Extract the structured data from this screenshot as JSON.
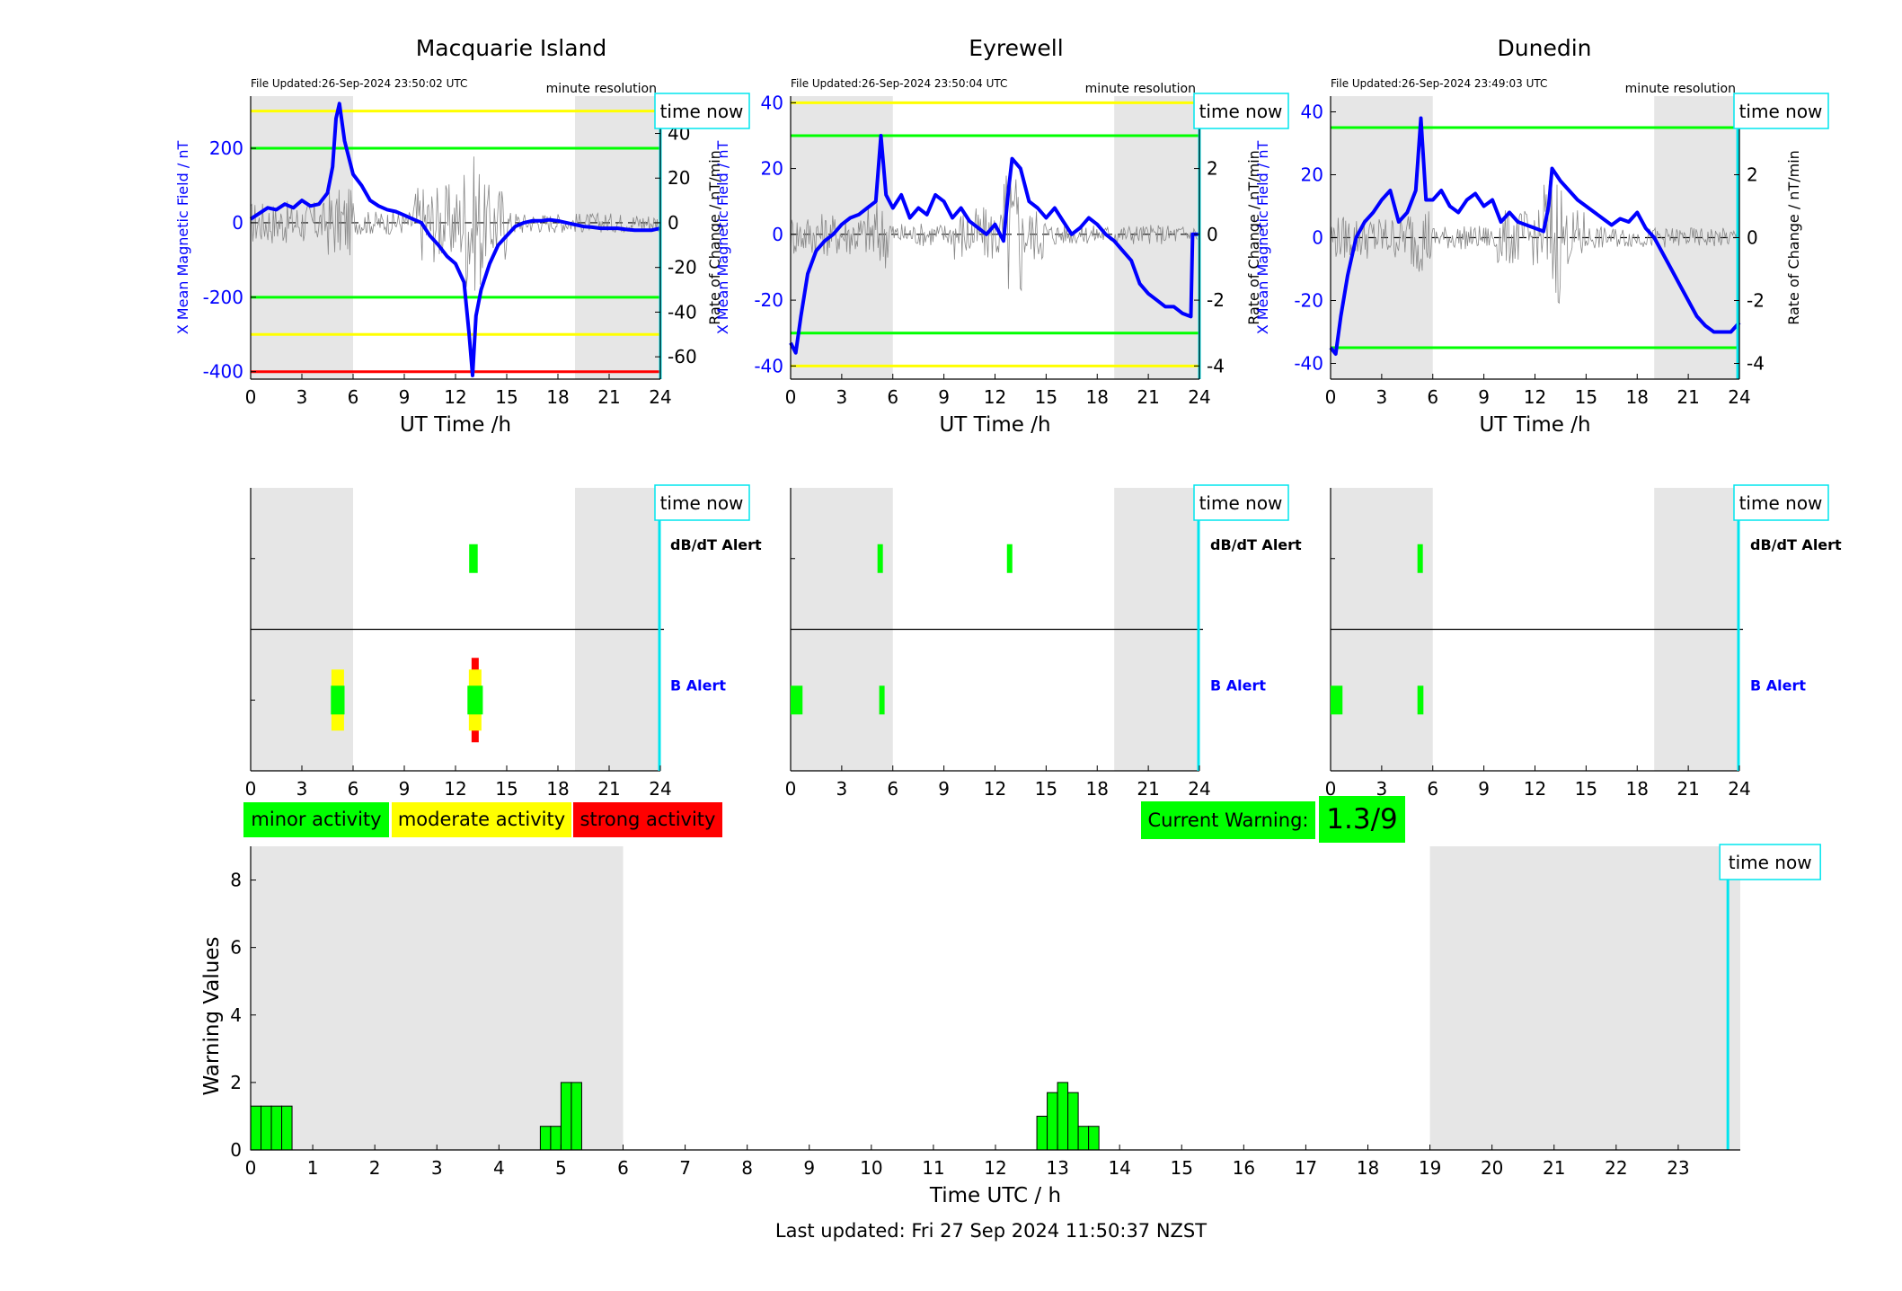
{
  "footer": {
    "last_updated": "Last updated: Fri 27 Sep 2024 11:50:37 NZST"
  },
  "colors": {
    "minor": "#00ff00",
    "moderate": "#ffff00",
    "strong": "#ff0000",
    "series_x": "#0000ff",
    "time_now": "#00e5ee",
    "night_shade": "#e6e6e6"
  },
  "stations": [
    {
      "name": "Macquarie Island",
      "file_updated": "File Updated:26-Sep-2024 23:50:02 UTC",
      "resolution": "minute resolution",
      "time_now_label": "time now",
      "xlabel": "UT Time /h",
      "ylabel_left": "X Mean Magnetic Field / nT",
      "ylabel_right": "Rate of Change / nT/min",
      "left_ticks": [
        "-400",
        "-200",
        "0",
        "200"
      ],
      "right_ticks": [
        "-60",
        "-40",
        "-20",
        "0",
        "20",
        "40"
      ],
      "x_ticks": [
        "0",
        "3",
        "6",
        "9",
        "12",
        "15",
        "18",
        "21",
        "24"
      ],
      "alert_dbdt_label": "dB/dT Alert",
      "alert_b_label": "B Alert"
    },
    {
      "name": "Eyrewell",
      "file_updated": "File Updated:26-Sep-2024 23:50:04 UTC",
      "resolution": "minute resolution",
      "time_now_label": "time now",
      "xlabel": "UT Time /h",
      "ylabel_left": "X Mean Magnetic Field / nT",
      "ylabel_right": "Rate of Change / nT/min",
      "left_ticks": [
        "-40",
        "-20",
        "0",
        "20",
        "40"
      ],
      "right_ticks": [
        "-4",
        "-2",
        "0",
        "2",
        "4"
      ],
      "x_ticks": [
        "0",
        "3",
        "6",
        "9",
        "12",
        "15",
        "18",
        "21",
        "24"
      ],
      "alert_dbdt_label": "dB/dT Alert",
      "alert_b_label": "B Alert"
    },
    {
      "name": "Dunedin",
      "file_updated": "File Updated:26-Sep-2024 23:49:03 UTC",
      "resolution": "minute resolution",
      "time_now_label": "time now",
      "xlabel": "UT Time /h",
      "ylabel_left": "X Mean Magnetic Field / nT",
      "ylabel_right": "Rate of Change / nT/min",
      "left_ticks": [
        "-40",
        "-20",
        "0",
        "20",
        "40"
      ],
      "right_ticks": [
        "-4",
        "-2",
        "0",
        "2",
        "4"
      ],
      "x_ticks": [
        "0",
        "3",
        "6",
        "9",
        "12",
        "15",
        "18",
        "21",
        "24"
      ],
      "alert_dbdt_label": "dB/dT Alert",
      "alert_b_label": "B Alert"
    }
  ],
  "legend": {
    "minor": "minor activity",
    "moderate": "moderate activity",
    "strong": "strong activity"
  },
  "current_warning": {
    "label": "Current Warning:",
    "value": "1.3/9"
  },
  "warning_chart": {
    "ylabel": "Warning Values",
    "xlabel": "Time UTC / h",
    "time_now_label": "time now",
    "y_ticks": [
      "0",
      "2",
      "4",
      "6",
      "8"
    ],
    "x_ticks": [
      "0",
      "1",
      "2",
      "3",
      "4",
      "5",
      "6",
      "7",
      "8",
      "9",
      "10",
      "11",
      "12",
      "13",
      "14",
      "15",
      "16",
      "17",
      "18",
      "19",
      "20",
      "21",
      "22",
      "23"
    ]
  },
  "chart_data": [
    {
      "type": "line",
      "title": "Macquarie Island",
      "xlabel": "UT Time /h",
      "ylabel": "X Mean Magnetic Field / nT",
      "y2label": "Rate of Change / nT/min",
      "xlim": [
        0,
        24
      ],
      "ylim": [
        -420,
        340
      ],
      "y2lim": [
        -70,
        56.7
      ],
      "threshold_lines": [
        {
          "y": 300,
          "color": "#ffff00"
        },
        {
          "y": 200,
          "color": "#00ff00"
        },
        {
          "y": -200,
          "color": "#00ff00"
        },
        {
          "y": -300,
          "color": "#ffff00"
        },
        {
          "y": -400,
          "color": "#ff0000"
        }
      ],
      "night_shading": [
        [
          0,
          6
        ],
        [
          19,
          24
        ]
      ],
      "time_now": 24,
      "series": [
        {
          "x": [
            0,
            0.5,
            1,
            1.5,
            2,
            2.5,
            3,
            3.5,
            4,
            4.5,
            4.8,
            5,
            5.2,
            5.5,
            6,
            6.5,
            7,
            7.5,
            8,
            8.5,
            9,
            9.5,
            10,
            10.5,
            11,
            11.5,
            12,
            12.5,
            12.8,
            13,
            13.2,
            13.5,
            14,
            14.5,
            15,
            15.5,
            16,
            16.5,
            17,
            17.5,
            18,
            18.5,
            19,
            19.5,
            20,
            20.5,
            21,
            21.5,
            22,
            22.5,
            23,
            23.5,
            24
          ],
          "y": [
            10,
            25,
            40,
            35,
            50,
            40,
            60,
            45,
            50,
            80,
            150,
            280,
            320,
            220,
            130,
            100,
            60,
            45,
            35,
            30,
            20,
            10,
            0,
            -35,
            -60,
            -90,
            -110,
            -160,
            -300,
            -410,
            -250,
            -180,
            -110,
            -60,
            -35,
            -10,
            0,
            5,
            5,
            8,
            5,
            0,
            -5,
            -10,
            -12,
            -15,
            -15,
            -15,
            -18,
            -20,
            -20,
            -20,
            -15
          ]
        }
      ]
    },
    {
      "type": "line",
      "title": "Eyrewell",
      "xlabel": "UT Time /h",
      "ylabel": "X Mean Magnetic Field / nT",
      "y2label": "Rate of Change / nT/min",
      "xlim": [
        0,
        24
      ],
      "ylim": [
        -44,
        42
      ],
      "y2lim": [
        -4.4,
        4.2
      ],
      "threshold_lines": [
        {
          "y": 40,
          "color": "#ffff00"
        },
        {
          "y": 30,
          "color": "#00ff00"
        },
        {
          "y": -30,
          "color": "#00ff00"
        },
        {
          "y": -40,
          "color": "#ffff00"
        }
      ],
      "night_shading": [
        [
          0,
          6
        ],
        [
          19,
          24
        ]
      ],
      "time_now": 24,
      "series": [
        {
          "x": [
            0,
            0.3,
            0.6,
            1,
            1.5,
            2,
            2.5,
            3,
            3.5,
            4,
            4.5,
            5,
            5.3,
            5.6,
            6,
            6.5,
            7,
            7.5,
            8,
            8.5,
            9,
            9.5,
            10,
            10.5,
            11,
            11.5,
            12,
            12.5,
            12.8,
            13,
            13.5,
            14,
            14.5,
            15,
            15.5,
            16,
            16.5,
            17,
            17.5,
            18,
            18.5,
            19,
            19.5,
            20,
            20.5,
            21,
            21.5,
            22,
            22.5,
            23,
            23.5,
            23.6,
            24
          ],
          "y": [
            -33,
            -36,
            -25,
            -12,
            -5,
            -2,
            0,
            3,
            5,
            6,
            8,
            10,
            30,
            12,
            8,
            12,
            5,
            8,
            6,
            12,
            10,
            5,
            8,
            4,
            2,
            0,
            3,
            -2,
            14,
            23,
            20,
            10,
            8,
            5,
            8,
            4,
            0,
            2,
            5,
            3,
            0,
            -2,
            -5,
            -8,
            -15,
            -18,
            -20,
            -22,
            -22,
            -24,
            -25,
            0,
            0
          ]
        }
      ]
    },
    {
      "type": "line",
      "title": "Dunedin",
      "xlabel": "UT Time /h",
      "ylabel": "X Mean Magnetic Field / nT",
      "y2label": "Rate of Change / nT/min",
      "xlim": [
        0,
        24
      ],
      "ylim": [
        -45,
        45
      ],
      "y2lim": [
        -4.5,
        4.5
      ],
      "threshold_lines": [
        {
          "y": 35,
          "color": "#00ff00"
        },
        {
          "y": -35,
          "color": "#00ff00"
        }
      ],
      "night_shading": [
        [
          0,
          6
        ],
        [
          19,
          24
        ]
      ],
      "time_now": 23.9,
      "series": [
        {
          "x": [
            0,
            0.3,
            0.6,
            1,
            1.5,
            2,
            2.5,
            3,
            3.5,
            4,
            4.5,
            5,
            5.3,
            5.6,
            6,
            6.5,
            7,
            7.5,
            8,
            8.5,
            9,
            9.5,
            10,
            10.5,
            11,
            11.5,
            12,
            12.5,
            12.8,
            13,
            13.5,
            14,
            14.5,
            15,
            15.5,
            16,
            16.5,
            17,
            17.5,
            18,
            18.5,
            19,
            19.5,
            20,
            20.5,
            21,
            21.5,
            22,
            22.5,
            23,
            23.5,
            24
          ],
          "y": [
            -35,
            -37,
            -25,
            -12,
            0,
            5,
            8,
            12,
            15,
            5,
            8,
            15,
            38,
            12,
            12,
            15,
            10,
            8,
            12,
            14,
            10,
            12,
            5,
            8,
            5,
            4,
            3,
            2,
            10,
            22,
            18,
            15,
            12,
            10,
            8,
            6,
            4,
            6,
            5,
            8,
            3,
            0,
            -5,
            -10,
            -15,
            -20,
            -25,
            -28,
            -30,
            -30,
            -30,
            -27
          ]
        }
      ]
    },
    {
      "type": "bar",
      "title": "",
      "xlabel": "Time UTC / h",
      "ylabel": "Warning Values",
      "xlim": [
        0,
        24
      ],
      "ylim": [
        0,
        9
      ],
      "night_shading": [
        [
          0,
          6
        ],
        [
          19,
          24
        ]
      ],
      "time_now": 23.8,
      "bin_width_h": 0.1667,
      "x": [
        0.0,
        0.1667,
        0.3333,
        0.5,
        4.6667,
        4.8333,
        5.0,
        5.1667,
        12.6667,
        12.8333,
        13.0,
        13.1667,
        13.3333,
        13.5
      ],
      "values": [
        1.3,
        1.3,
        1.3,
        1.3,
        0.7,
        0.7,
        2.0,
        2.0,
        1.0,
        1.7,
        2.0,
        1.7,
        0.7,
        0.7
      ]
    }
  ],
  "alerts": [
    {
      "dbdt": [
        {
          "x0": 12.8,
          "x1": 13.3,
          "level": "minor"
        }
      ],
      "b": [
        {
          "x0": 4.7,
          "x1": 5.5,
          "level": "minor",
          "ext": "moderate"
        },
        {
          "x0": 12.7,
          "x1": 13.6,
          "level": "minor",
          "ext": "strong"
        }
      ]
    },
    {
      "dbdt": [
        {
          "x0": 5.1,
          "x1": 5.4,
          "level": "minor"
        },
        {
          "x0": 12.7,
          "x1": 12.95,
          "level": "minor"
        }
      ],
      "b": [
        {
          "x0": 0.0,
          "x1": 0.7,
          "level": "minor"
        },
        {
          "x0": 5.2,
          "x1": 5.5,
          "level": "minor"
        }
      ]
    },
    {
      "dbdt": [
        {
          "x0": 5.1,
          "x1": 5.4,
          "level": "minor"
        }
      ],
      "b": [
        {
          "x0": 0.0,
          "x1": 0.7,
          "level": "minor"
        },
        {
          "x0": 5.1,
          "x1": 5.45,
          "level": "minor"
        }
      ]
    }
  ]
}
